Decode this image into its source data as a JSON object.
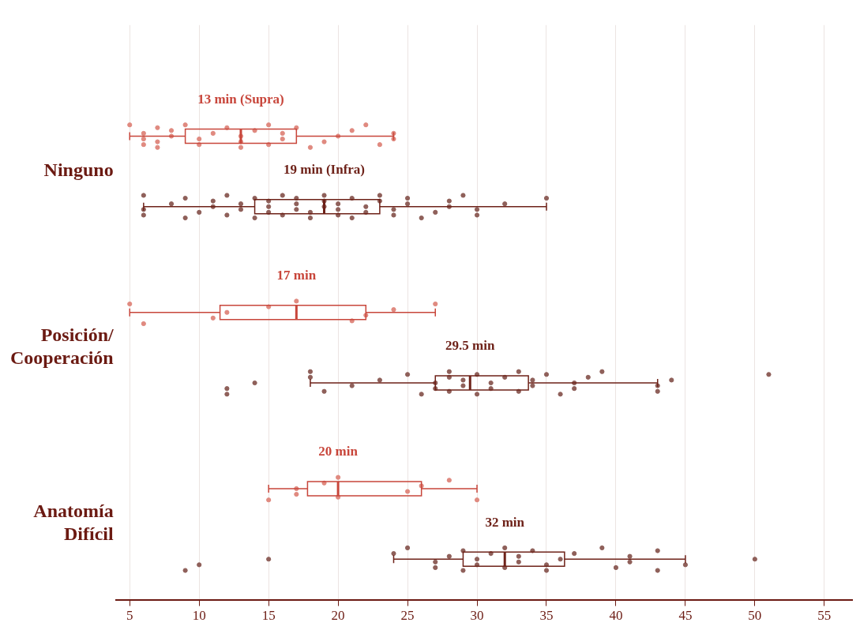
{
  "chart_data": {
    "type": "box",
    "orientation": "horizontal",
    "categories": [
      "Ninguno",
      "Posición/ Cooperación",
      "Anatomía Difícil"
    ],
    "xlim": [
      4,
      57
    ],
    "xticks": [
      5,
      10,
      15,
      20,
      25,
      30,
      35,
      40,
      45,
      50,
      55
    ],
    "grid": "x",
    "legend": false,
    "series": [
      {
        "type": "box",
        "color": "#c8463b",
        "boxes": [
          {
            "low": 5,
            "q1": 9,
            "median": 13,
            "q3": 17,
            "high": 24
          },
          {
            "low": 5,
            "q1": 11.5,
            "median": 17,
            "q3": 22,
            "high": 27
          },
          {
            "low": 15,
            "q1": 17.8,
            "median": 20,
            "q3": 26,
            "high": 30
          }
        ]
      },
      {
        "type": "box",
        "color": "#6e2219",
        "boxes": [
          {
            "low": 6,
            "q1": 14,
            "median": 19,
            "q3": 23,
            "high": 35
          },
          {
            "low": 18,
            "q1": 27,
            "median": 29.5,
            "q3": 33.7,
            "high": 43
          },
          {
            "low": 24,
            "q1": 29,
            "median": 32,
            "q3": 36.3,
            "high": 45
          }
        ]
      },
      {
        "type": "scatter",
        "color": "#e08a80",
        "x": [
          "Ninguno",
          "Ninguno",
          "Ninguno",
          "Ninguno",
          "Ninguno",
          "Ninguno",
          "Ninguno",
          "Ninguno",
          "Ninguno",
          "Ninguno",
          "Ninguno",
          "Ninguno",
          "Ninguno",
          "Ninguno",
          "Ninguno",
          "Ninguno",
          "Ninguno",
          "Ninguno",
          "Ninguno",
          "Ninguno",
          "Ninguno",
          "Ninguno",
          "Ninguno",
          "Ninguno",
          "Ninguno",
          "Ninguno",
          "Ninguno",
          "Ninguno",
          "Ninguno",
          "Ninguno",
          "Ninguno",
          "Posición/ Cooperación",
          "Posición/ Cooperación",
          "Posición/ Cooperación",
          "Posición/ Cooperación",
          "Posición/ Cooperación",
          "Posición/ Cooperación",
          "Posición/ Cooperación",
          "Posición/ Cooperación",
          "Posición/ Cooperación",
          "Posición/ Cooperación",
          "Anatomía Difícil",
          "Anatomía Difícil",
          "Anatomía Difícil",
          "Anatomía Difícil",
          "Anatomía Difícil",
          "Anatomía Difícil",
          "Anatomía Difícil",
          "Anatomía Difícil",
          "Anatomía Difícil",
          "Anatomía Difícil"
        ],
        "values": [
          5,
          6,
          6,
          6,
          7,
          7,
          7,
          8,
          8,
          9,
          10,
          10,
          11,
          12,
          13,
          13,
          13,
          14,
          15,
          15,
          16,
          16,
          17,
          18,
          19,
          20,
          21,
          22,
          23,
          24,
          24,
          5,
          6,
          11,
          12,
          15,
          17,
          21,
          22,
          24,
          27,
          15,
          17,
          17,
          19,
          20,
          20,
          25,
          26,
          28,
          30
        ]
      },
      {
        "type": "scatter",
        "color": "#8f605a",
        "x": [
          "Ninguno",
          "Ninguno",
          "Ninguno",
          "Ninguno",
          "Ninguno",
          "Ninguno",
          "Ninguno",
          "Ninguno",
          "Ninguno",
          "Ninguno",
          "Ninguno",
          "Ninguno",
          "Ninguno",
          "Ninguno",
          "Ninguno",
          "Ninguno",
          "Ninguno",
          "Ninguno",
          "Ninguno",
          "Ninguno",
          "Ninguno",
          "Ninguno",
          "Ninguno",
          "Ninguno",
          "Ninguno",
          "Ninguno",
          "Ninguno",
          "Ninguno",
          "Ninguno",
          "Ninguno",
          "Ninguno",
          "Ninguno",
          "Ninguno",
          "Ninguno",
          "Ninguno",
          "Ninguno",
          "Ninguno",
          "Ninguno",
          "Ninguno",
          "Ninguno",
          "Ninguno",
          "Ninguno",
          "Ninguno",
          "Ninguno",
          "Ninguno",
          "Ninguno",
          "Ninguno",
          "Ninguno",
          "Ninguno",
          "Ninguno",
          "Posición/ Cooperación",
          "Posición/ Cooperación",
          "Posición/ Cooperación",
          "Posición/ Cooperación",
          "Posición/ Cooperación",
          "Posición/ Cooperación",
          "Posición/ Cooperación",
          "Posición/ Cooperación",
          "Posición/ Cooperación",
          "Posición/ Cooperación",
          "Posición/ Cooperación",
          "Posición/ Cooperación",
          "Posición/ Cooperación",
          "Posición/ Cooperación",
          "Posición/ Cooperación",
          "Posición/ Cooperación",
          "Posición/ Cooperación",
          "Posición/ Cooperación",
          "Posición/ Cooperación",
          "Posición/ Cooperación",
          "Posición/ Cooperación",
          "Posición/ Cooperación",
          "Posición/ Cooperación",
          "Posición/ Cooperación",
          "Posición/ Cooperación",
          "Posición/ Cooperación",
          "Posición/ Cooperación",
          "Posición/ Cooperación",
          "Posición/ Cooperación",
          "Posición/ Cooperación",
          "Posición/ Cooperación",
          "Posición/ Cooperación",
          "Posición/ Cooperación",
          "Posición/ Cooperación",
          "Posición/ Cooperación",
          "Posición/ Cooperación",
          "Anatomía Difícil",
          "Anatomía Difícil",
          "Anatomía Difícil",
          "Anatomía Difícil",
          "Anatomía Difícil",
          "Anatomía Difícil",
          "Anatomía Difícil",
          "Anatomía Difícil",
          "Anatomía Difícil",
          "Anatomía Difícil",
          "Anatomía Difícil",
          "Anatomía Difícil",
          "Anatomía Difícil",
          "Anatomía Difícil",
          "Anatomía Difícil",
          "Anatomía Difícil",
          "Anatomía Difícil",
          "Anatomía Difícil",
          "Anatomía Difícil",
          "Anatomía Difícil",
          "Anatomía Difícil",
          "Anatomía Difícil",
          "Anatomía Difícil",
          "Anatomía Difícil",
          "Anatomía Difícil",
          "Anatomía Difícil",
          "Anatomía Difícil",
          "Anatomía Difícil",
          "Anatomía Difícil",
          "Anatomía Difícil"
        ],
        "values": [
          6,
          6,
          6,
          8,
          9,
          9,
          10,
          11,
          11,
          12,
          12,
          13,
          13,
          14,
          14,
          15,
          15,
          15,
          16,
          16,
          17,
          17,
          17,
          18,
          18,
          19,
          19,
          19,
          20,
          20,
          20,
          21,
          21,
          22,
          22,
          23,
          23,
          24,
          24,
          25,
          25,
          26,
          27,
          28,
          28,
          29,
          30,
          30,
          32,
          35,
          12,
          12,
          14,
          18,
          18,
          19,
          21,
          23,
          25,
          26,
          27,
          27,
          28,
          28,
          28,
          29,
          29,
          30,
          30,
          31,
          31,
          32,
          33,
          33,
          34,
          34,
          35,
          36,
          37,
          37,
          38,
          39,
          43,
          43,
          44,
          51,
          9,
          10,
          15,
          24,
          25,
          27,
          27,
          28,
          29,
          29,
          30,
          30,
          31,
          32,
          32,
          33,
          33,
          34,
          35,
          35,
          36,
          37,
          39,
          40,
          41,
          41,
          43,
          43,
          45,
          50
        ]
      }
    ],
    "annotations": [
      "13 min (Supra)",
      "19 min (Infra)",
      "17 min",
      "29.5 min",
      "20 min",
      "32 min"
    ]
  }
}
